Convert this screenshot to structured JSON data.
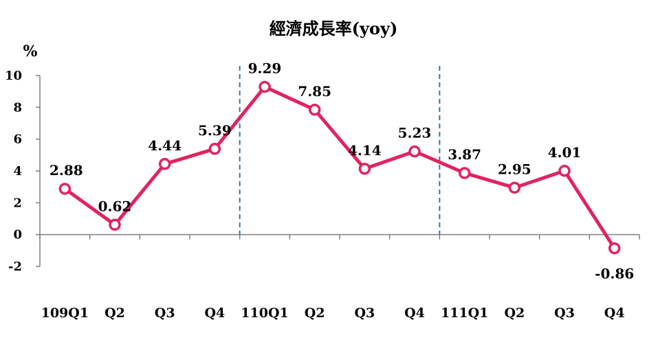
{
  "chart_data": {
    "type": "line",
    "title": "經濟成長率(yoy)",
    "y_unit": "%",
    "categories": [
      "109Q1",
      "Q2",
      "Q3",
      "Q4",
      "110Q1",
      "Q2",
      "Q3",
      "Q4",
      "111Q1",
      "Q2",
      "Q3",
      "Q4"
    ],
    "series": [
      {
        "values": [
          2.88,
          0.62,
          4.44,
          5.39,
          9.29,
          7.85,
          4.14,
          5.23,
          3.87,
          2.95,
          4.01,
          -0.86
        ]
      }
    ],
    "data_labels": [
      "2.88",
      "0.62",
      "4.44",
      "5.39",
      "9.29",
      "7.85",
      "4.14",
      "5.23",
      "3.87",
      "2.95",
      "4.01",
      "-0.86"
    ],
    "y_ticks": [
      10,
      8,
      6,
      4,
      2,
      0,
      -2
    ],
    "y_tick_labels": [
      "10",
      "8",
      "6",
      "4",
      "2",
      "0",
      "-2"
    ],
    "ylim": [
      -2,
      10
    ],
    "year_separators_after": [
      "Q4",
      "Q4"
    ],
    "grid": false,
    "legend": "none",
    "colors": {
      "line": "#e0245e",
      "marker_fill": "#ffffff",
      "separator": "#3a6fbf",
      "axis": "#7f7f7f"
    }
  }
}
